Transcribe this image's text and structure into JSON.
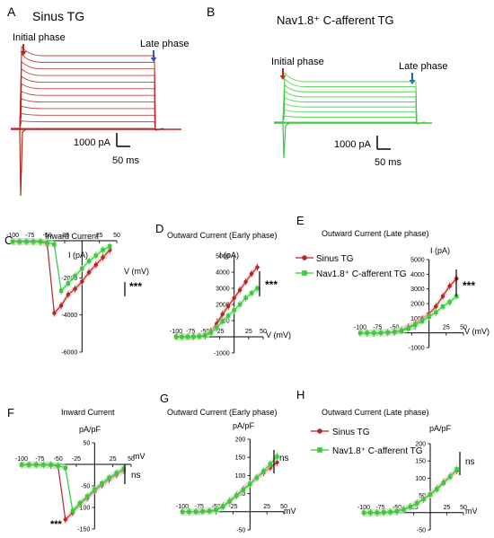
{
  "panels": {
    "A": {
      "letter": "A",
      "title": "Sinus TG",
      "initial": "Initial phase",
      "late": "Late phase",
      "scale_current": "1000 pA",
      "scale_time": "50 ms"
    },
    "B": {
      "letter": "B",
      "title": "Nav1.8⁺ C-afferent TG",
      "initial": "Initial phase",
      "late": "Late phase",
      "scale_current": "1000 pA",
      "scale_time": "50 ms"
    }
  },
  "colors": {
    "sinus": "#b5261e",
    "nav": "#3cc93c",
    "sinus_fill": "#f2b8c1",
    "nav_fill": "#b7f2c0",
    "arrow_red": "#b5261e",
    "arrow_blue": "#2060c8"
  },
  "legend": {
    "sinus": "Sinus TG",
    "nav": "Nav1.8⁺ C-afferent TG"
  },
  "chart_data": [
    {
      "id": "C",
      "letter": "C",
      "type": "line",
      "title": "Inward Current",
      "xlabel": "V (mV)",
      "ylabel": "I (pA)",
      "xlim": [
        -100,
        50
      ],
      "ylim": [
        -6000,
        0
      ],
      "xticks": [
        -100,
        -75,
        -50,
        -25,
        25,
        50
      ],
      "yticks": [
        -2000,
        -4000,
        -6000
      ],
      "annotation": "***",
      "x": [
        -100,
        -90,
        -80,
        -70,
        -60,
        -50,
        -40,
        -30,
        -20,
        -10,
        0,
        10,
        20,
        30,
        40
      ],
      "series": [
        {
          "name": "Sinus TG",
          "key": "sinus",
          "values": [
            -50,
            -50,
            -50,
            -50,
            -60,
            -200,
            -3900,
            -3500,
            -2900,
            -2600,
            -2200,
            -1700,
            -1300,
            -900,
            -500
          ]
        },
        {
          "name": "Nav1.8⁺ C-afferent TG",
          "key": "nav",
          "values": [
            -50,
            -50,
            -50,
            -50,
            -50,
            -100,
            -200,
            -2700,
            -2300,
            -1900,
            -1500,
            -1100,
            -800,
            -500,
            -300
          ]
        }
      ]
    },
    {
      "id": "D",
      "letter": "D",
      "type": "line",
      "title": "Outward Current (Early phase)",
      "xlabel": "V (mV)",
      "ylabel": "I (pA)",
      "xlim": [
        -100,
        50
      ],
      "ylim": [
        -1000,
        5000
      ],
      "xticks": [
        -100,
        -75,
        -50,
        -25,
        25,
        50
      ],
      "yticks": [
        -1000,
        1000,
        2000,
        3000,
        4000,
        5000
      ],
      "annotation": "***",
      "x": [
        -100,
        -90,
        -80,
        -70,
        -60,
        -50,
        -40,
        -30,
        -20,
        -10,
        0,
        10,
        20,
        30,
        40
      ],
      "series": [
        {
          "name": "Sinus TG",
          "key": "sinus",
          "values": [
            0,
            0,
            0,
            10,
            40,
            100,
            350,
            800,
            1400,
            1900,
            2400,
            2900,
            3400,
            3900,
            4300
          ]
        },
        {
          "name": "Nav1.8⁺ C-afferent TG",
          "key": "nav",
          "values": [
            0,
            0,
            0,
            10,
            30,
            80,
            250,
            550,
            950,
            1300,
            1650,
            2000,
            2400,
            2700,
            3000
          ]
        }
      ]
    },
    {
      "id": "E",
      "letter": "E",
      "type": "line",
      "title": "Outward Current (Late phase)",
      "xlabel": "V (mV)",
      "ylabel": "I (pA)",
      "xlim": [
        -100,
        50
      ],
      "ylim": [
        -1000,
        5000
      ],
      "xticks": [
        -100,
        -75,
        -50,
        -25,
        25,
        50
      ],
      "yticks": [
        -1000,
        1000,
        2000,
        3000,
        4000,
        5000
      ],
      "annotation": "***",
      "x": [
        -100,
        -90,
        -80,
        -70,
        -60,
        -50,
        -40,
        -30,
        -20,
        -10,
        0,
        10,
        20,
        30,
        40
      ],
      "series": [
        {
          "name": "Sinus TG",
          "key": "sinus",
          "values": [
            0,
            0,
            0,
            10,
            30,
            80,
            200,
            400,
            650,
            950,
            1300,
            1800,
            2500,
            3200,
            3700
          ]
        },
        {
          "name": "Nav1.8⁺ C-afferent TG",
          "key": "nav",
          "values": [
            0,
            0,
            0,
            10,
            30,
            70,
            150,
            300,
            550,
            800,
            1100,
            1400,
            1800,
            2100,
            2500
          ]
        }
      ]
    },
    {
      "id": "F",
      "letter": "F",
      "type": "line",
      "title": "Inward Current",
      "xlabel": "mV",
      "ylabel": "pA/pF",
      "xlim": [
        -100,
        50
      ],
      "ylim": [
        -150,
        50
      ],
      "xticks": [
        -100,
        -75,
        -50,
        -25,
        25,
        50
      ],
      "yticks": [
        50,
        -50,
        -100,
        -150
      ],
      "annotation": "ns",
      "annotation2": "***",
      "x": [
        -100,
        -90,
        -80,
        -70,
        -60,
        -50,
        -40,
        -30,
        -20,
        -10,
        0,
        10,
        20,
        30,
        40
      ],
      "series": [
        {
          "name": "Sinus TG",
          "key": "sinus",
          "values": [
            -1,
            -1,
            -1,
            -1,
            -2,
            -5,
            -128,
            -112,
            -92,
            -78,
            -62,
            -48,
            -35,
            -24,
            -14
          ]
        },
        {
          "name": "Nav1.8⁺ C-afferent TG",
          "key": "nav",
          "values": [
            -1,
            -1,
            -1,
            -1,
            -1,
            -3,
            -8,
            -108,
            -90,
            -74,
            -58,
            -44,
            -31,
            -20,
            -10
          ]
        }
      ]
    },
    {
      "id": "G",
      "letter": "G",
      "type": "line",
      "title": "Outward Current (Early phase)",
      "xlabel": "mV",
      "ylabel": "pA/pF",
      "xlim": [
        -100,
        50
      ],
      "ylim": [
        -50,
        200
      ],
      "xticks": [
        -100,
        -75,
        -50,
        -25,
        25,
        50
      ],
      "yticks": [
        -50,
        50,
        100,
        150,
        200
      ],
      "annotation": "ns",
      "x": [
        -100,
        -90,
        -80,
        -70,
        -60,
        -50,
        -40,
        -30,
        -20,
        -10,
        0,
        10,
        20,
        30,
        40
      ],
      "series": [
        {
          "name": "Sinus TG",
          "key": "sinus",
          "values": [
            0,
            0,
            0,
            1,
            2,
            6,
            16,
            30,
            46,
            62,
            78,
            94,
            108,
            122,
            136
          ]
        },
        {
          "name": "Nav1.8⁺ C-afferent TG",
          "key": "nav",
          "values": [
            0,
            0,
            0,
            1,
            2,
            5,
            14,
            28,
            44,
            60,
            76,
            94,
            112,
            132,
            152
          ]
        }
      ]
    },
    {
      "id": "H",
      "letter": "H",
      "type": "line",
      "title": "Outward Current (Late phase)",
      "xlabel": "mV",
      "ylabel": "pA/pF",
      "xlim": [
        -100,
        50
      ],
      "ylim": [
        -50,
        200
      ],
      "xticks": [
        -100,
        -75,
        -50,
        -25,
        25,
        50
      ],
      "yticks": [
        -50,
        50,
        100,
        150,
        200
      ],
      "annotation": "ns",
      "x": [
        -100,
        -90,
        -80,
        -70,
        -60,
        -50,
        -40,
        -30,
        -20,
        -10,
        0,
        10,
        20,
        30,
        40
      ],
      "series": [
        {
          "name": "Sinus TG",
          "key": "sinus",
          "values": [
            0,
            0,
            0,
            1,
            2,
            5,
            10,
            18,
            28,
            40,
            54,
            70,
            88,
            106,
            122
          ]
        },
        {
          "name": "Nav1.8⁺ C-afferent TG",
          "key": "nav",
          "values": [
            0,
            0,
            0,
            1,
            2,
            4,
            9,
            17,
            27,
            39,
            52,
            68,
            86,
            104,
            126
          ]
        }
      ]
    }
  ]
}
